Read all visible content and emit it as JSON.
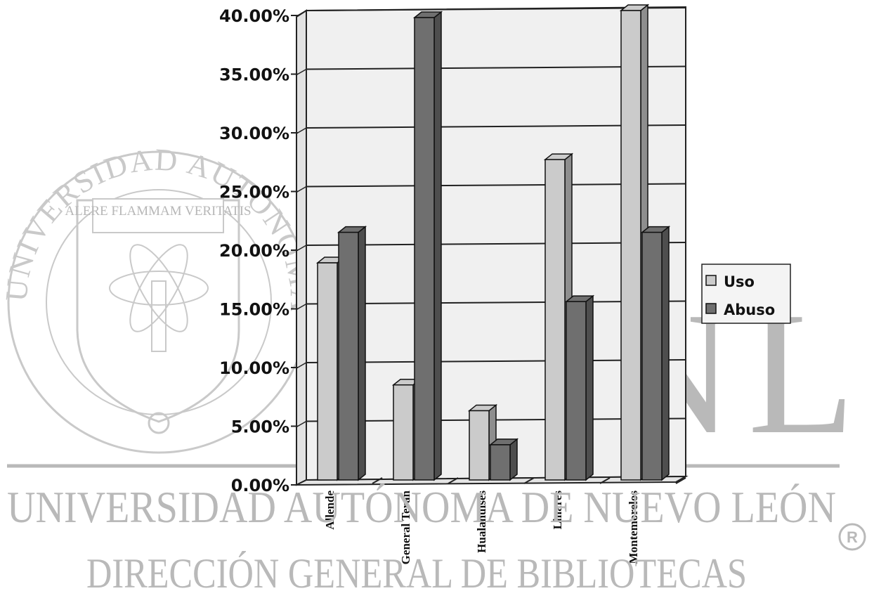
{
  "chart_data": {
    "type": "bar",
    "categories": [
      "Allende",
      "General Teran",
      "Hualahuises",
      "Linares",
      "Montemorelos"
    ],
    "series": [
      {
        "name": "Uso",
        "values": [
          18.5,
          8.1,
          5.9,
          27.3,
          40.0
        ],
        "color": "#cbcbcb"
      },
      {
        "name": "Abuso",
        "values": [
          21.1,
          39.4,
          3.0,
          15.2,
          21.1
        ],
        "color": "#6f6f6f"
      }
    ],
    "yticks": [
      "0.00%",
      "5.00%",
      "10.00%",
      "15.00%",
      "20.00%",
      "25.00%",
      "30.00%",
      "35.00%",
      "40.00%"
    ],
    "ylim": [
      0,
      40
    ],
    "grid": true,
    "legend_position": "right",
    "title": "",
    "xlabel": "",
    "ylabel": ""
  },
  "watermark": {
    "seal_ring_text": "UNIVERSIDAD AUTONOMA DE NUEVO LEON",
    "seal_motto": "ALERE FLAMMAM VERITATIS",
    "letters": "UANL",
    "university": "UNIVERSIDAD AUTÓNOMA DE NUEVO LEÓN",
    "direction": "DIRECCIÓN GENERAL DE BIBLIOTECAS",
    "registered": "®",
    "color": "#b9b9b9"
  }
}
